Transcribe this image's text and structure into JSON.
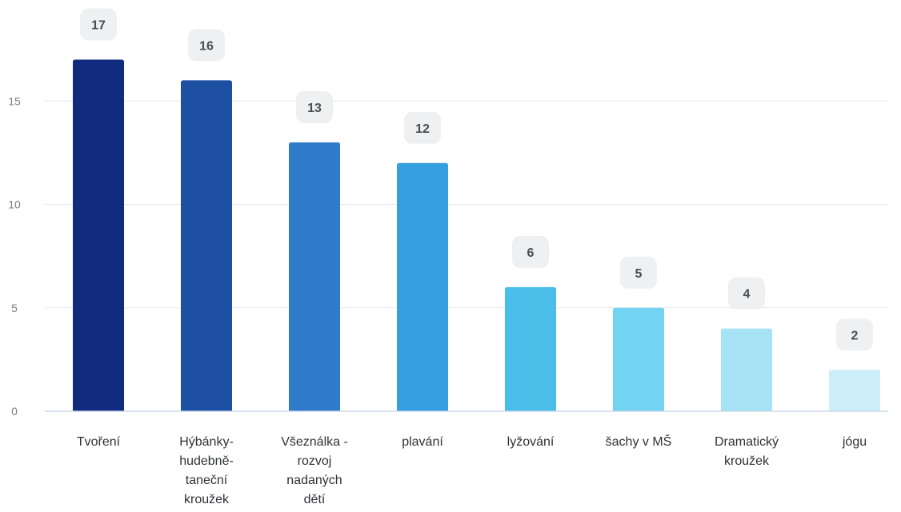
{
  "chart_data": {
    "type": "bar",
    "title": "",
    "xlabel": "",
    "ylabel": "",
    "categories": [
      "Tvoření",
      "Hýbánky-hudebně-taneční kroužek",
      "Všeználka - rozvoj nadaných dětí",
      "plavání",
      "lyžování",
      "šachy v MŠ",
      "Dramatický kroužek",
      "jógu"
    ],
    "category_lines": [
      [
        "Tvoření"
      ],
      [
        "Hýbánky-",
        "hudebně-",
        "taneční",
        "kroužek"
      ],
      [
        "Všeználka -",
        "rozvoj",
        "nadaných",
        "dětí"
      ],
      [
        "plavání"
      ],
      [
        "lyžování"
      ],
      [
        "šachy v MŠ"
      ],
      [
        "Dramatický",
        "kroužek"
      ],
      [
        "jógu"
      ]
    ],
    "values": [
      17,
      16,
      13,
      12,
      6,
      5,
      4,
      2
    ],
    "data_labels": [
      "17",
      "16",
      "13",
      "12",
      "6",
      "5",
      "4",
      "2"
    ],
    "bar_colors": [
      "#112c7f",
      "#1d4fa3",
      "#2f7bc9",
      "#369fe0",
      "#4bbde9",
      "#73d4f1",
      "#a7e3f4",
      "#cdeff9"
    ],
    "yticks": [
      0,
      5,
      10,
      15
    ],
    "ytick_labels": [
      "0",
      "5",
      "10",
      "15"
    ],
    "ylim": [
      0,
      17.8
    ],
    "grid": true,
    "legend": "none"
  }
}
